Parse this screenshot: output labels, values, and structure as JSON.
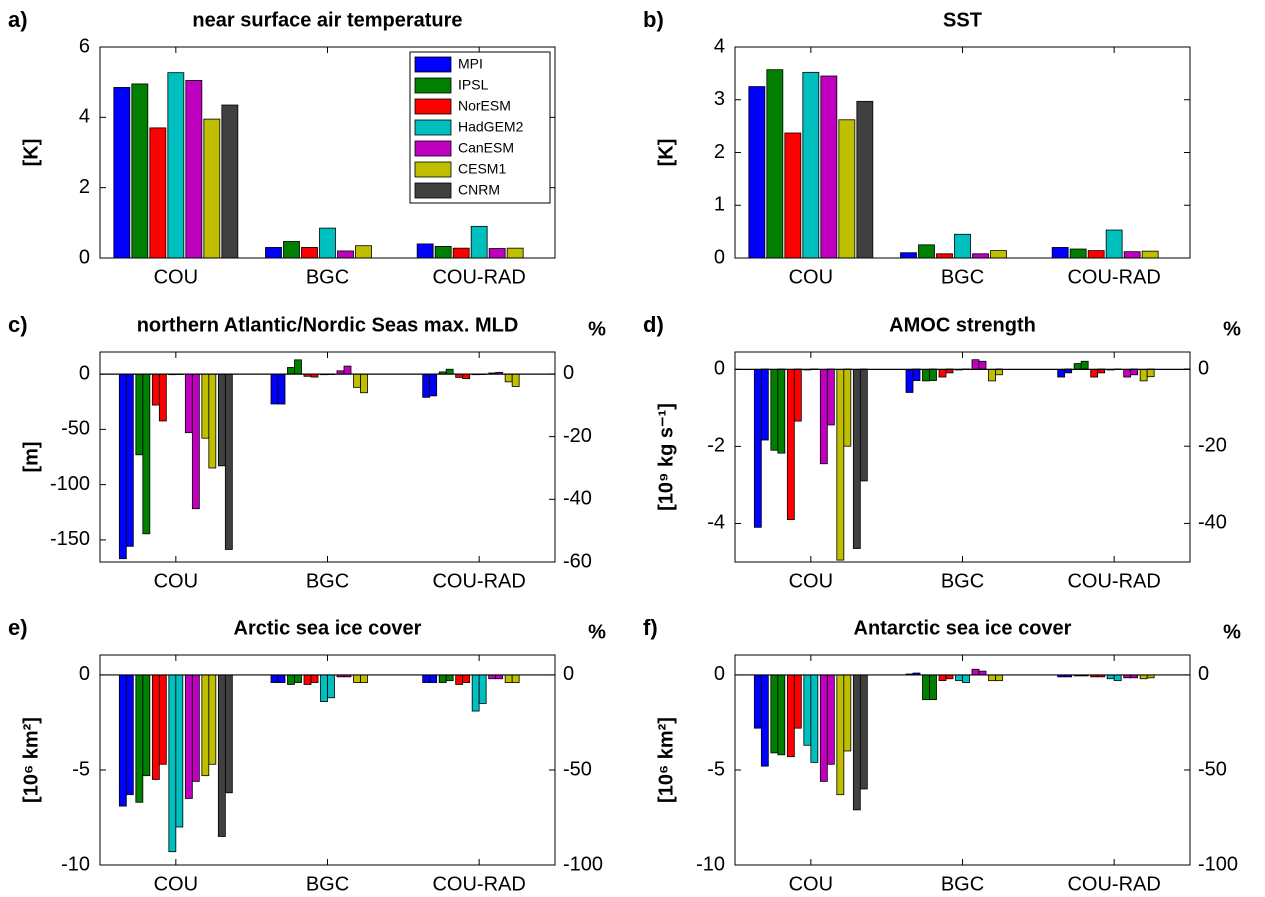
{
  "chart_data": [
    {
      "type": "bar",
      "panel_label": "a)",
      "title": "near surface air temperature",
      "ylabel": "[K]",
      "categories": [
        "COU",
        "BGC",
        "COU-RAD"
      ],
      "ylim": [
        0,
        6
      ],
      "yticks": [
        0,
        2,
        4,
        6
      ],
      "legend": "upper right",
      "series": [
        {
          "name": "MPI",
          "color": "#0000ff",
          "values": [
            4.85,
            0.3,
            0.4
          ]
        },
        {
          "name": "IPSL",
          "color": "#007f00",
          "values": [
            4.95,
            0.47,
            0.33
          ]
        },
        {
          "name": "NorESM",
          "color": "#ff0000",
          "values": [
            3.7,
            0.3,
            0.28
          ]
        },
        {
          "name": "HadGEM2",
          "color": "#00bfbf",
          "values": [
            5.27,
            0.85,
            0.9
          ]
        },
        {
          "name": "CanESM",
          "color": "#bf00bf",
          "values": [
            5.05,
            0.2,
            0.27
          ]
        },
        {
          "name": "CESM1",
          "color": "#bfbf00",
          "values": [
            3.95,
            0.35,
            0.28
          ]
        },
        {
          "name": "CNRM",
          "color": "#404040",
          "values": [
            4.35,
            null,
            null
          ]
        }
      ]
    },
    {
      "type": "bar",
      "panel_label": "b)",
      "title": "SST",
      "ylabel": "[K]",
      "categories": [
        "COU",
        "BGC",
        "COU-RAD"
      ],
      "ylim": [
        0,
        4
      ],
      "yticks": [
        0,
        1,
        2,
        3,
        4
      ],
      "series": [
        {
          "color": "#0000ff",
          "values": [
            3.25,
            0.1,
            0.2
          ]
        },
        {
          "color": "#007f00",
          "values": [
            3.57,
            0.25,
            0.17
          ]
        },
        {
          "color": "#ff0000",
          "values": [
            2.37,
            0.08,
            0.14
          ]
        },
        {
          "color": "#00bfbf",
          "values": [
            3.52,
            0.45,
            0.53
          ]
        },
        {
          "color": "#bf00bf",
          "values": [
            3.45,
            0.08,
            0.12
          ]
        },
        {
          "color": "#bfbf00",
          "values": [
            2.62,
            0.14,
            0.13
          ]
        },
        {
          "color": "#404040",
          "values": [
            2.97,
            null,
            null
          ]
        }
      ]
    },
    {
      "type": "bar",
      "panel_label": "c)",
      "title": "northern Atlantic/Nordic Seas max. MLD",
      "ylabel": "[m]",
      "y2label": "%",
      "categories": [
        "COU",
        "BGC",
        "COU-RAD"
      ],
      "ylim": [
        -170,
        20
      ],
      "yticks": [
        -150,
        -100,
        -50,
        0
      ],
      "y2lim": [
        -60,
        7
      ],
      "y2ticks": [
        -60,
        -40,
        -20,
        0
      ],
      "series": [
        {
          "color": "#0000ff",
          "values": [
            -167,
            -27,
            -21
          ]
        },
        {
          "color": "#0000ff",
          "axis": "y2",
          "values": [
            -55,
            -9.6,
            -7
          ]
        },
        {
          "color": "#007f00",
          "values": [
            -73,
            6,
            2
          ]
        },
        {
          "color": "#007f00",
          "axis": "y2",
          "values": [
            -51,
            4.5,
            1.5
          ]
        },
        {
          "color": "#ff0000",
          "values": [
            -28,
            -2,
            -3
          ]
        },
        {
          "color": "#ff0000",
          "axis": "y2",
          "values": [
            -15,
            -1,
            -1.5
          ]
        },
        {
          "color": "#00bfbf",
          "values": [
            0,
            0,
            0
          ]
        },
        {
          "color": "#00bfbf",
          "axis": "y2",
          "values": [
            0,
            0,
            0
          ]
        },
        {
          "color": "#bf00bf",
          "values": [
            -53,
            3,
            1
          ]
        },
        {
          "color": "#bf00bf",
          "axis": "y2",
          "values": [
            -43,
            2.5,
            0.5
          ]
        },
        {
          "color": "#bfbf00",
          "values": [
            -58,
            -12,
            -7
          ]
        },
        {
          "color": "#bfbf00",
          "axis": "y2",
          "values": [
            -30,
            -6,
            -4
          ]
        },
        {
          "color": "#404040",
          "values": [
            -83,
            null,
            null
          ]
        },
        {
          "color": "#404040",
          "axis": "y2",
          "values": [
            -56,
            null,
            null
          ]
        }
      ]
    },
    {
      "type": "bar",
      "panel_label": "d)",
      "title": "AMOC strength",
      "ylabel": "[10⁹ kg s⁻¹]",
      "y2label": "%",
      "categories": [
        "COU",
        "BGC",
        "COU-RAD"
      ],
      "ylim": [
        -5,
        0.45
      ],
      "yticks": [
        -4,
        -2,
        0
      ],
      "y2lim": [
        -50,
        4.4
      ],
      "y2ticks": [
        -40,
        -20,
        0
      ],
      "series": [
        {
          "color": "#0000ff",
          "values": [
            -4.1,
            -0.6,
            -0.2
          ]
        },
        {
          "color": "#0000ff",
          "axis": "y2",
          "values": [
            -18.4,
            -3,
            -1
          ]
        },
        {
          "color": "#007f00",
          "values": [
            -2.1,
            -0.3,
            0.15
          ]
        },
        {
          "color": "#007f00",
          "axis": "y2",
          "values": [
            -21.8,
            -3,
            2
          ]
        },
        {
          "color": "#ff0000",
          "values": [
            -3.9,
            -0.2,
            -0.2
          ]
        },
        {
          "color": "#ff0000",
          "axis": "y2",
          "values": [
            -13.5,
            -1,
            -1
          ]
        },
        {
          "color": "#00bfbf",
          "values": [
            0,
            0,
            0
          ]
        },
        {
          "color": "#00bfbf",
          "axis": "y2",
          "values": [
            0,
            0,
            0
          ]
        },
        {
          "color": "#bf00bf",
          "values": [
            -2.45,
            0.25,
            -0.2
          ]
        },
        {
          "color": "#bf00bf",
          "axis": "y2",
          "values": [
            -14.5,
            2,
            -1.5
          ]
        },
        {
          "color": "#bfbf00",
          "values": [
            -4.95,
            -0.3,
            -0.3
          ]
        },
        {
          "color": "#bfbf00",
          "axis": "y2",
          "values": [
            -20,
            -1.5,
            -2
          ]
        },
        {
          "color": "#404040",
          "values": [
            -4.65,
            null,
            null
          ]
        },
        {
          "color": "#404040",
          "axis": "y2",
          "values": [
            -29,
            null,
            null
          ]
        }
      ]
    },
    {
      "type": "bar",
      "panel_label": "e)",
      "title": "Arctic sea ice cover",
      "ylabel": "[10⁶ km²]",
      "y2label": "%",
      "categories": [
        "COU",
        "BGC",
        "COU-RAD"
      ],
      "ylim": [
        -10,
        1.05
      ],
      "yticks": [
        -10,
        -5,
        0
      ],
      "y2lim": [
        -100,
        10.5
      ],
      "y2ticks": [
        -100,
        -50,
        0
      ],
      "series": [
        {
          "color": "#0000ff",
          "values": [
            -6.9,
            -0.4,
            -0.4
          ]
        },
        {
          "color": "#0000ff",
          "axis": "y2",
          "values": [
            -63,
            -4,
            -4
          ]
        },
        {
          "color": "#007f00",
          "values": [
            -6.7,
            -0.5,
            -0.4
          ]
        },
        {
          "color": "#007f00",
          "axis": "y2",
          "values": [
            -53,
            -4,
            -3
          ]
        },
        {
          "color": "#ff0000",
          "values": [
            -5.5,
            -0.5,
            -0.5
          ]
        },
        {
          "color": "#ff0000",
          "axis": "y2",
          "values": [
            -47,
            -4,
            -4
          ]
        },
        {
          "color": "#00bfbf",
          "values": [
            -9.3,
            -1.4,
            -1.9
          ]
        },
        {
          "color": "#00bfbf",
          "axis": "y2",
          "values": [
            -80,
            -12,
            -15
          ]
        },
        {
          "color": "#bf00bf",
          "values": [
            -6.5,
            -0.1,
            -0.2
          ]
        },
        {
          "color": "#bf00bf",
          "axis": "y2",
          "values": [
            -56,
            -1,
            -2
          ]
        },
        {
          "color": "#bfbf00",
          "values": [
            -5.3,
            -0.4,
            -0.4
          ]
        },
        {
          "color": "#bfbf00",
          "axis": "y2",
          "values": [
            -47,
            -4,
            -4
          ]
        },
        {
          "color": "#404040",
          "values": [
            -8.5,
            null,
            null
          ]
        },
        {
          "color": "#404040",
          "axis": "y2",
          "values": [
            -62,
            null,
            null
          ]
        }
      ]
    },
    {
      "type": "bar",
      "panel_label": "f)",
      "title": "Antarctic sea ice cover",
      "ylabel": "[10⁶ km²]",
      "y2label": "%",
      "categories": [
        "COU",
        "BGC",
        "COU-RAD"
      ],
      "ylim": [
        -10,
        1.05
      ],
      "yticks": [
        -10,
        -5,
        0
      ],
      "y2lim": [
        -100,
        10.5
      ],
      "y2ticks": [
        -100,
        -50,
        0
      ],
      "series": [
        {
          "color": "#0000ff",
          "values": [
            -2.8,
            0.05,
            -0.1
          ]
        },
        {
          "color": "#0000ff",
          "axis": "y2",
          "values": [
            -48,
            1,
            -1
          ]
        },
        {
          "color": "#007f00",
          "values": [
            -4.1,
            -1.3,
            -0.05
          ]
        },
        {
          "color": "#007f00",
          "axis": "y2",
          "values": [
            -42,
            -13,
            -0.5
          ]
        },
        {
          "color": "#ff0000",
          "values": [
            -4.3,
            -0.3,
            -0.1
          ]
        },
        {
          "color": "#ff0000",
          "axis": "y2",
          "values": [
            -28,
            -2,
            -1
          ]
        },
        {
          "color": "#00bfbf",
          "values": [
            -3.7,
            -0.3,
            -0.2
          ]
        },
        {
          "color": "#00bfbf",
          "axis": "y2",
          "values": [
            -46,
            -4,
            -3
          ]
        },
        {
          "color": "#bf00bf",
          "values": [
            -5.6,
            0.3,
            -0.15
          ]
        },
        {
          "color": "#bf00bf",
          "axis": "y2",
          "values": [
            -47,
            2,
            -1.5
          ]
        },
        {
          "color": "#bfbf00",
          "values": [
            -6.3,
            -0.3,
            -0.2
          ]
        },
        {
          "color": "#bfbf00",
          "axis": "y2",
          "values": [
            -40,
            -3,
            -1.5
          ]
        },
        {
          "color": "#404040",
          "values": [
            -7.1,
            null,
            null
          ]
        },
        {
          "color": "#404040",
          "axis": "y2",
          "values": [
            -60,
            null,
            null
          ]
        }
      ]
    }
  ]
}
